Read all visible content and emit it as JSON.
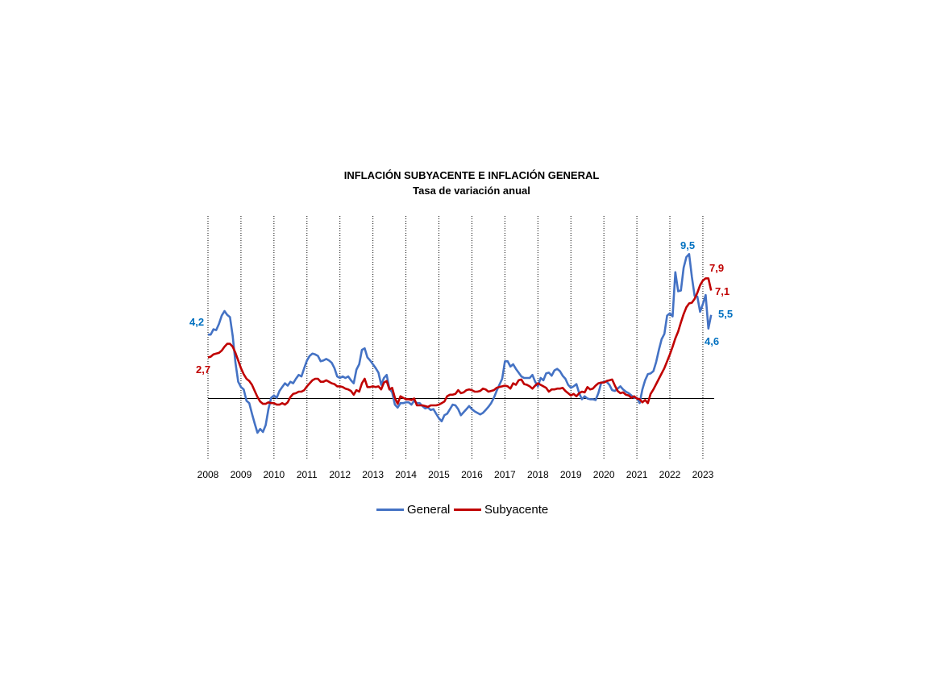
{
  "chart_data": {
    "type": "line",
    "title": "INFLACIÓN SUBYACENTE E INFLACIÓN GENERAL",
    "subtitle": "Tasa de variación anual",
    "xlabel": "",
    "ylabel": "",
    "x_start": "2008-01",
    "x_frequency": "monthly",
    "x_ticks": [
      "2008",
      "2009",
      "2010",
      "2011",
      "2012",
      "2013",
      "2014",
      "2015",
      "2016",
      "2017",
      "2018",
      "2019",
      "2020",
      "2021",
      "2022",
      "2023"
    ],
    "ylim": [
      -4,
      12
    ],
    "y_axis_labels_shown": false,
    "grid": "vertical dotted lines at each year",
    "legend": "bottom",
    "colors": {
      "General": "#4472C4",
      "Subyacente": "#C00000",
      "general_label": "#0070C0",
      "subyacente_label": "#C00000"
    },
    "series": [
      {
        "name": "General",
        "values": [
          4.2,
          4.2,
          4.55,
          4.5,
          4.9,
          5.45,
          5.75,
          5.5,
          5.35,
          4.1,
          2.35,
          1.1,
          0.75,
          0.6,
          -0.15,
          -0.3,
          -1.0,
          -1.65,
          -2.25,
          -2.0,
          -2.2,
          -1.75,
          -0.7,
          0.05,
          0.2,
          0.05,
          0.5,
          0.75,
          1.0,
          0.85,
          1.1,
          1.0,
          1.3,
          1.55,
          1.45,
          2.0,
          2.5,
          2.8,
          2.95,
          2.9,
          2.8,
          2.45,
          2.5,
          2.6,
          2.5,
          2.35,
          2.0,
          1.45,
          1.35,
          1.45,
          1.35,
          1.45,
          1.2,
          1.0,
          1.9,
          2.25,
          3.2,
          3.3,
          2.7,
          2.5,
          2.25,
          2.0,
          1.7,
          0.9,
          1.35,
          1.55,
          0.65,
          0.4,
          -0.4,
          -0.6,
          -0.3,
          -0.3,
          -0.25,
          -0.25,
          -0.4,
          -0.15,
          -0.3,
          -0.3,
          -0.5,
          -0.65,
          -0.6,
          -0.75,
          -0.7,
          -1.0,
          -1.3,
          -1.5,
          -1.1,
          -1.0,
          -0.7,
          -0.4,
          -0.45,
          -0.7,
          -1.1,
          -0.9,
          -0.7,
          -0.5,
          -0.7,
          -0.85,
          -0.95,
          -1.05,
          -0.95,
          -0.75,
          -0.55,
          -0.3,
          0.05,
          0.5,
          0.9,
          1.3,
          2.45,
          2.45,
          2.1,
          2.25,
          1.95,
          1.7,
          1.45,
          1.35,
          1.35,
          1.35,
          1.55,
          1.1,
          0.8,
          1.35,
          1.2,
          1.65,
          1.7,
          1.5,
          1.85,
          1.95,
          1.8,
          1.5,
          1.3,
          0.9,
          0.7,
          0.8,
          0.95,
          0.35,
          -0.05,
          0.15,
          0.0,
          -0.05,
          -0.05,
          -0.1,
          0.35,
          1.0,
          1.1,
          1.1,
          0.9,
          0.55,
          0.5,
          0.65,
          0.8,
          0.6,
          0.45,
          0.35,
          0.2,
          0.05,
          0.05,
          -0.3,
          0.6,
          1.2,
          1.6,
          1.65,
          1.8,
          2.4,
          3.2,
          3.9,
          4.25,
          5.45,
          5.6,
          5.4,
          8.3,
          7.05,
          7.1,
          8.6,
          9.3,
          9.5,
          8.0,
          6.75,
          6.7,
          5.7,
          6.2,
          6.8,
          4.6,
          5.5
        ]
      },
      {
        "name": "Subyacente",
        "values": [
          2.7,
          2.75,
          2.9,
          2.95,
          3.0,
          3.15,
          3.4,
          3.6,
          3.6,
          3.4,
          3.0,
          2.5,
          2.0,
          1.6,
          1.3,
          1.15,
          0.9,
          0.5,
          0.1,
          -0.2,
          -0.35,
          -0.35,
          -0.25,
          -0.3,
          -0.3,
          -0.4,
          -0.4,
          -0.3,
          -0.4,
          -0.25,
          0.1,
          0.3,
          0.35,
          0.45,
          0.45,
          0.55,
          0.8,
          1.0,
          1.2,
          1.3,
          1.3,
          1.1,
          1.1,
          1.2,
          1.1,
          1.0,
          0.95,
          0.8,
          0.8,
          0.75,
          0.65,
          0.6,
          0.5,
          0.25,
          0.55,
          0.45,
          1.0,
          1.3,
          0.75,
          0.75,
          0.8,
          0.75,
          0.8,
          0.6,
          1.05,
          1.15,
          0.6,
          0.7,
          0.05,
          -0.35,
          0.15,
          0.05,
          -0.05,
          -0.05,
          -0.1,
          0.0,
          -0.45,
          -0.45,
          -0.45,
          -0.5,
          -0.55,
          -0.45,
          -0.45,
          -0.45,
          -0.4,
          -0.3,
          -0.2,
          0.15,
          0.25,
          0.25,
          0.3,
          0.55,
          0.35,
          0.4,
          0.55,
          0.6,
          0.55,
          0.45,
          0.45,
          0.5,
          0.65,
          0.6,
          0.45,
          0.5,
          0.55,
          0.7,
          0.75,
          0.8,
          0.85,
          0.8,
          0.65,
          1.0,
          0.9,
          1.2,
          1.25,
          0.95,
          0.9,
          0.8,
          0.65,
          0.85,
          1.0,
          0.9,
          0.8,
          0.7,
          0.45,
          0.6,
          0.6,
          0.65,
          0.65,
          0.7,
          0.5,
          0.35,
          0.2,
          0.3,
          0.15,
          0.35,
          0.45,
          0.4,
          0.75,
          0.6,
          0.65,
          0.85,
          1.0,
          1.05,
          1.05,
          1.15,
          1.2,
          1.25,
          0.85,
          0.5,
          0.35,
          0.4,
          0.25,
          0.2,
          0.05,
          0.15,
          0.0,
          -0.05,
          -0.25,
          -0.1,
          -0.3,
          0.3,
          0.6,
          0.95,
          1.3,
          1.65,
          2.0,
          2.45,
          2.9,
          3.4,
          3.95,
          4.4,
          5.0,
          5.55,
          6.0,
          6.25,
          6.3,
          6.55,
          6.95,
          7.45,
          7.75,
          7.9,
          7.9,
          7.1
        ]
      }
    ],
    "annotations": [
      {
        "series": "General",
        "text": "4,2"
      },
      {
        "series": "Subyacente",
        "text": "2,7"
      },
      {
        "series": "General",
        "text": "9,5"
      },
      {
        "series": "Subyacente",
        "text": "7,9"
      },
      {
        "series": "Subyacente",
        "text": "7,1"
      },
      {
        "series": "General",
        "text": "5,5"
      },
      {
        "series": "General",
        "text": "4,6"
      }
    ]
  }
}
